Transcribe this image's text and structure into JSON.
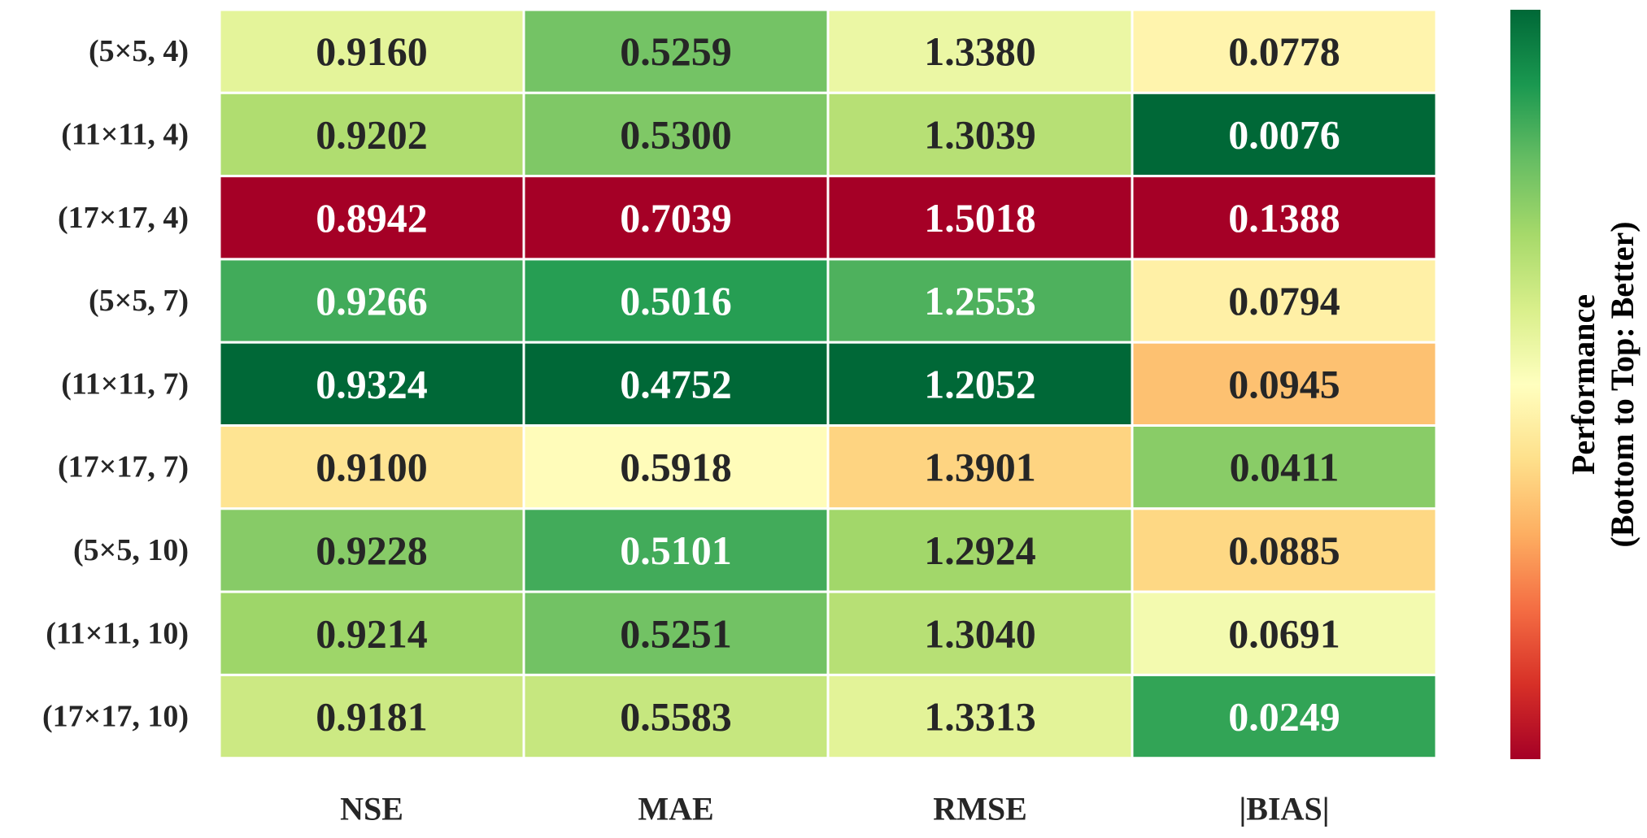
{
  "chart_data": {
    "type": "heatmap",
    "rows": [
      "(5×5, 4)",
      "(11×11, 4)",
      "(17×17, 4)",
      "(5×5, 7)",
      "(11×11, 7)",
      "(17×17, 7)",
      "(5×5, 10)",
      "(11×11, 10)",
      "(17×17, 10)"
    ],
    "columns": [
      "NSE",
      "MAE",
      "RMSE",
      "|BIAS|"
    ],
    "values": [
      [
        "0.9160",
        "0.5259",
        "1.3380",
        "0.0778"
      ],
      [
        "0.9202",
        "0.5300",
        "1.3039",
        "0.0076"
      ],
      [
        "0.8942",
        "0.7039",
        "1.5018",
        "0.1388"
      ],
      [
        "0.9266",
        "0.5016",
        "1.2553",
        "0.0794"
      ],
      [
        "0.9324",
        "0.4752",
        "1.2052",
        "0.0945"
      ],
      [
        "0.9100",
        "0.5918",
        "1.3901",
        "0.0411"
      ],
      [
        "0.9228",
        "0.5101",
        "1.2924",
        "0.0885"
      ],
      [
        "0.9214",
        "0.5251",
        "1.3040",
        "0.0691"
      ],
      [
        "0.9181",
        "0.5583",
        "1.3313",
        "0.0249"
      ]
    ],
    "higher_is_better": [
      true,
      false,
      false,
      false
    ],
    "colorbar": {
      "label_line1": "Performance",
      "label_line2": "(Bottom to Top: Better)",
      "colormap": "RdYlGn"
    }
  }
}
